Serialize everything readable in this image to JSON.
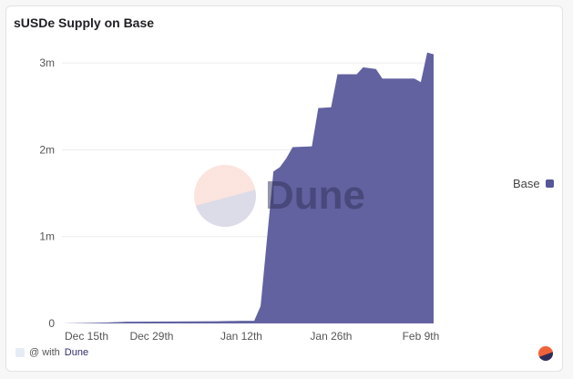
{
  "title": "sUSDe Supply on Base",
  "legend": {
    "label": "Base"
  },
  "credit": {
    "prefix": "@ with",
    "brand": "Dune"
  },
  "watermark": "Dune",
  "colors": {
    "series": "#56569a",
    "grid": "#ececef",
    "text": "#555555"
  },
  "chart_data": {
    "type": "area",
    "title": "sUSDe Supply on Base",
    "x_unit": "days since Dec 15th",
    "x_ticks": [
      {
        "day": 0,
        "label": "Dec 15th"
      },
      {
        "day": 14,
        "label": "Dec 29th"
      },
      {
        "day": 28,
        "label": "Jan 12th"
      },
      {
        "day": 42,
        "label": "Jan 26th"
      },
      {
        "day": 56,
        "label": "Feb 9th"
      }
    ],
    "y_ticks": [
      {
        "value": 0,
        "label": "0"
      },
      {
        "value": 1000000,
        "label": "1m"
      },
      {
        "value": 2000000,
        "label": "2m"
      },
      {
        "value": 3000000,
        "label": "3m"
      }
    ],
    "ylim": [
      0,
      3300000
    ],
    "xlim": [
      0,
      58
    ],
    "grid": true,
    "legend_position": "right",
    "series": [
      {
        "name": "Base",
        "x": [
          0,
          7,
          10,
          24,
          28,
          30,
          31,
          33,
          34,
          35,
          36,
          39,
          40,
          42,
          43,
          46,
          47,
          49,
          50,
          55,
          56,
          57,
          58
        ],
        "values": [
          0,
          10000,
          20000,
          25000,
          30000,
          30000,
          200000,
          1750000,
          1800000,
          1900000,
          2030000,
          2040000,
          2480000,
          2490000,
          2870000,
          2870000,
          2950000,
          2930000,
          2820000,
          2820000,
          2780000,
          3120000,
          3100000
        ]
      }
    ]
  }
}
